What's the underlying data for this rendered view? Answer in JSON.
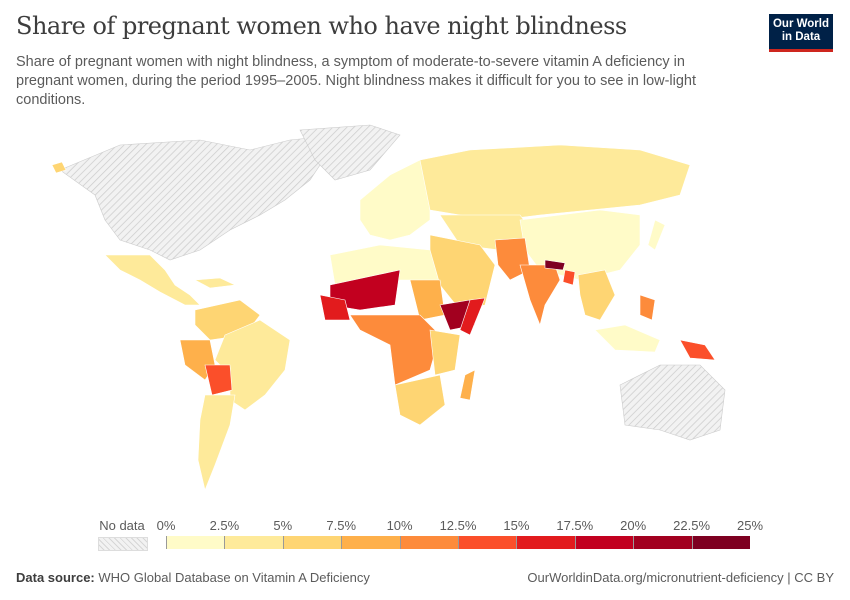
{
  "header": {
    "title": "Share of pregnant women who have night blindness",
    "subtitle": "Share of pregnant women with night blindness, a symptom of moderate-to-severe vitamin A deficiency in pregnant women, during the period 1995–2005. Night blindness makes it difficult for you to see in low-light conditions.",
    "logo_line1": "Our World",
    "logo_line2": "in Data"
  },
  "legend": {
    "no_data_label": "No data",
    "ticks": [
      "0%",
      "2.5%",
      "5%",
      "7.5%",
      "10%",
      "12.5%",
      "15%",
      "17.5%",
      "20%",
      "22.5%",
      "25%"
    ],
    "colors": [
      "#fffbc8",
      "#feea9a",
      "#fed573",
      "#feb04b",
      "#fd8b3b",
      "#fb4f2a",
      "#e21b1d",
      "#c2001f",
      "#a2001f",
      "#7e0021"
    ],
    "no_data_color": "#e8e8e8"
  },
  "map": {
    "type": "choropleth",
    "metric": "Share of pregnant women with night blindness",
    "range": [
      0,
      25
    ],
    "unit": "%"
  },
  "footer": {
    "source_label": "Data source:",
    "source": "WHO Global Database on Vitamin A Deficiency",
    "link": "OurWorldinData.org/micronutrient-deficiency | CC BY"
  }
}
